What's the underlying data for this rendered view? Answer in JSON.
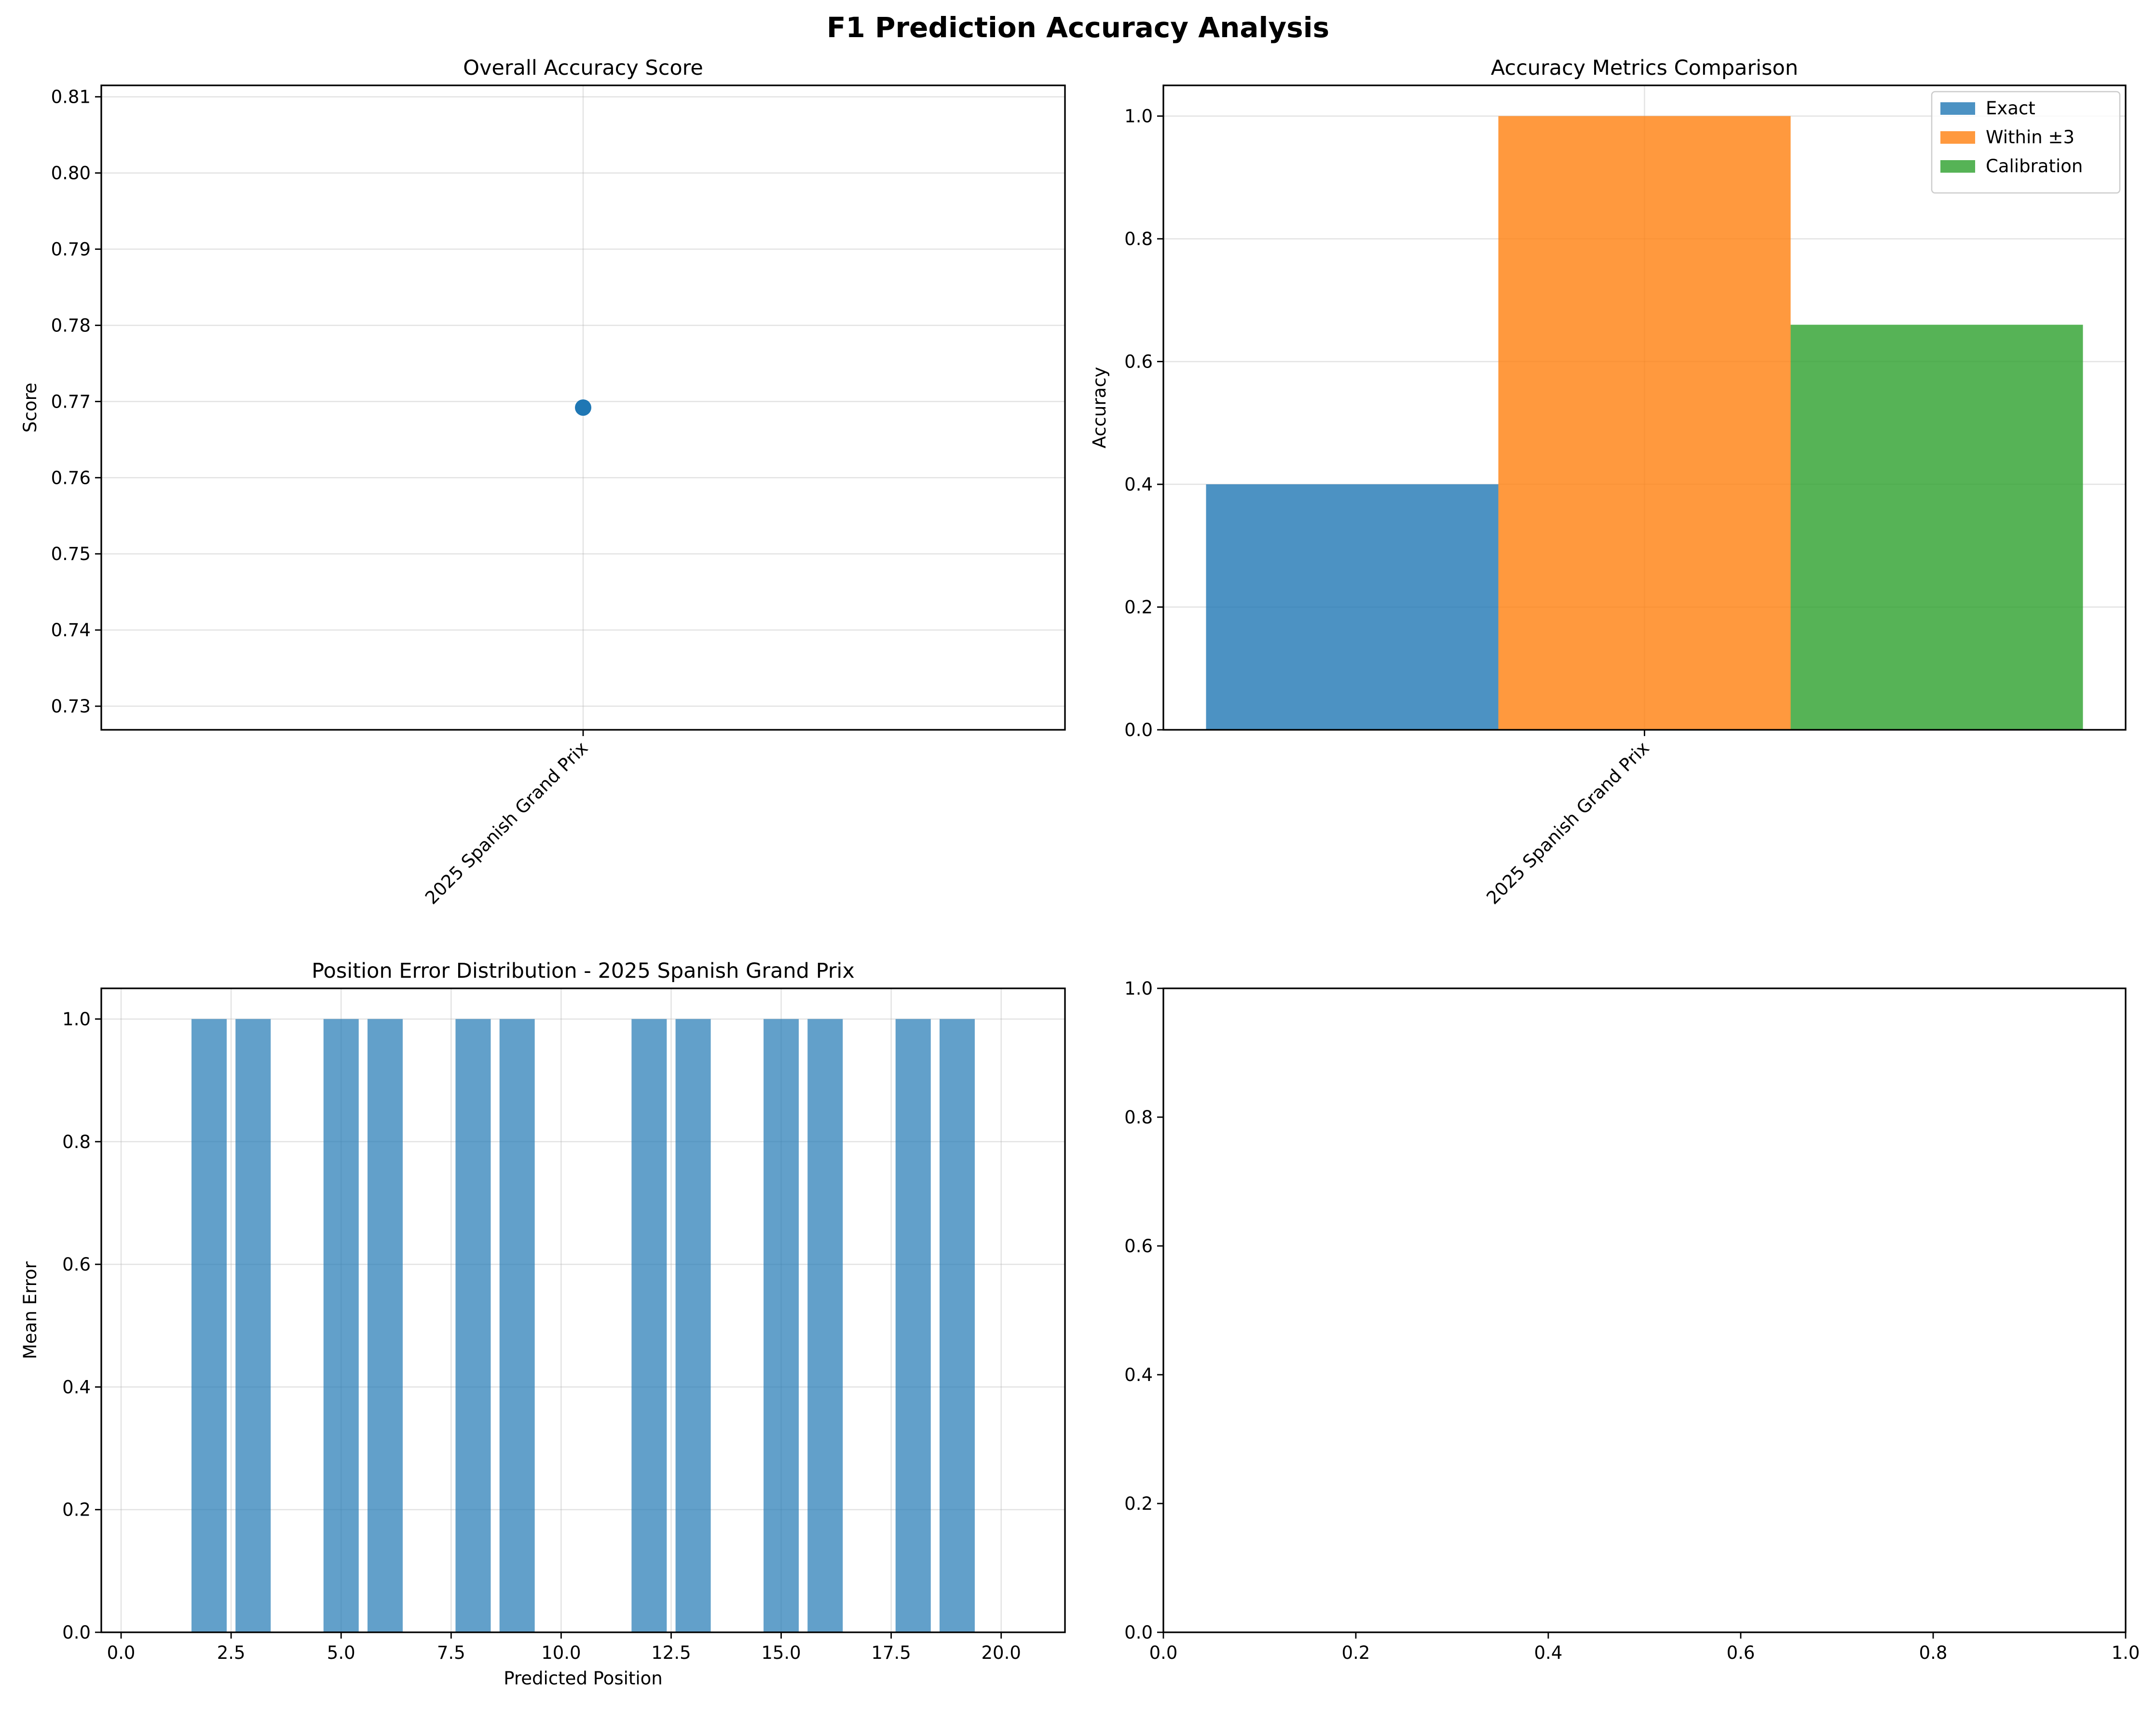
{
  "figure": {
    "title": "F1 Prediction Accuracy Analysis"
  },
  "colors": {
    "blue": "#1f77b4",
    "orange": "#ff7f0e",
    "green": "#2ca02c",
    "bar_alpha": 0.8,
    "hist_alpha": 0.7
  },
  "chart_data": [
    {
      "id": "overall-score",
      "type": "scatter",
      "title": "Overall Accuracy Score",
      "xlabel": "",
      "ylabel": "Score",
      "categories": [
        "2025 Spanish Grand Prix"
      ],
      "values": [
        0.7692
      ],
      "ylim": [
        0.7269,
        0.8115
      ],
      "yticks": [
        0.73,
        0.74,
        0.75,
        0.76,
        0.77,
        0.78,
        0.79,
        0.8,
        0.81
      ],
      "ytick_labels": [
        "0.73",
        "0.74",
        "0.75",
        "0.76",
        "0.77",
        "0.78",
        "0.79",
        "0.80",
        "0.81"
      ],
      "xtick_rotation": 45,
      "grid": true
    },
    {
      "id": "metrics-comparison",
      "type": "bar",
      "title": "Accuracy Metrics Comparison",
      "xlabel": "",
      "ylabel": "Accuracy",
      "categories": [
        "2025 Spanish Grand Prix"
      ],
      "series": [
        {
          "name": "Exact",
          "color": "#1f77b4",
          "values": [
            0.4
          ]
        },
        {
          "name": "Within ±3",
          "color": "#ff7f0e",
          "values": [
            1.0
          ]
        },
        {
          "name": "Calibration",
          "color": "#2ca02c",
          "values": [
            0.66
          ]
        }
      ],
      "ylim": [
        0,
        1.05
      ],
      "yticks": [
        0.0,
        0.2,
        0.4,
        0.6,
        0.8,
        1.0
      ],
      "ytick_labels": [
        "0.0",
        "0.2",
        "0.4",
        "0.6",
        "0.8",
        "1.0"
      ],
      "legend": "top-right",
      "xtick_rotation": 45,
      "grid": true
    },
    {
      "id": "position-error",
      "type": "bar",
      "title": "Position Error Distribution - 2025 Spanish Grand Prix",
      "xlabel": "Predicted Position",
      "ylabel": "Mean Error",
      "x": [
        2,
        3,
        5,
        6,
        8,
        9,
        12,
        13,
        15,
        16,
        18,
        19
      ],
      "values": [
        1,
        1,
        1,
        1,
        1,
        1,
        1,
        1,
        1,
        1,
        1,
        1
      ],
      "xlim": [
        -0.45,
        21.45
      ],
      "ylim": [
        0,
        1.05
      ],
      "xticks": [
        0.0,
        2.5,
        5.0,
        7.5,
        10.0,
        12.5,
        15.0,
        17.5,
        20.0
      ],
      "xtick_labels": [
        "0.0",
        "2.5",
        "5.0",
        "7.5",
        "10.0",
        "12.5",
        "15.0",
        "17.5",
        "20.0"
      ],
      "yticks": [
        0.0,
        0.2,
        0.4,
        0.6,
        0.8,
        1.0
      ],
      "ytick_labels": [
        "0.0",
        "0.2",
        "0.4",
        "0.6",
        "0.8",
        "1.0"
      ],
      "grid": true
    },
    {
      "id": "empty-panel",
      "type": "scatter",
      "title": "",
      "xlabel": "",
      "ylabel": "",
      "xlim": [
        0,
        1
      ],
      "ylim": [
        0,
        1
      ],
      "xticks": [
        0.0,
        0.2,
        0.4,
        0.6,
        0.8,
        1.0
      ],
      "xtick_labels": [
        "0.0",
        "0.2",
        "0.4",
        "0.6",
        "0.8",
        "1.0"
      ],
      "yticks": [
        0.0,
        0.2,
        0.4,
        0.6,
        0.8,
        1.0
      ],
      "ytick_labels": [
        "0.0",
        "0.2",
        "0.4",
        "0.6",
        "0.8",
        "1.0"
      ],
      "grid": false
    }
  ]
}
